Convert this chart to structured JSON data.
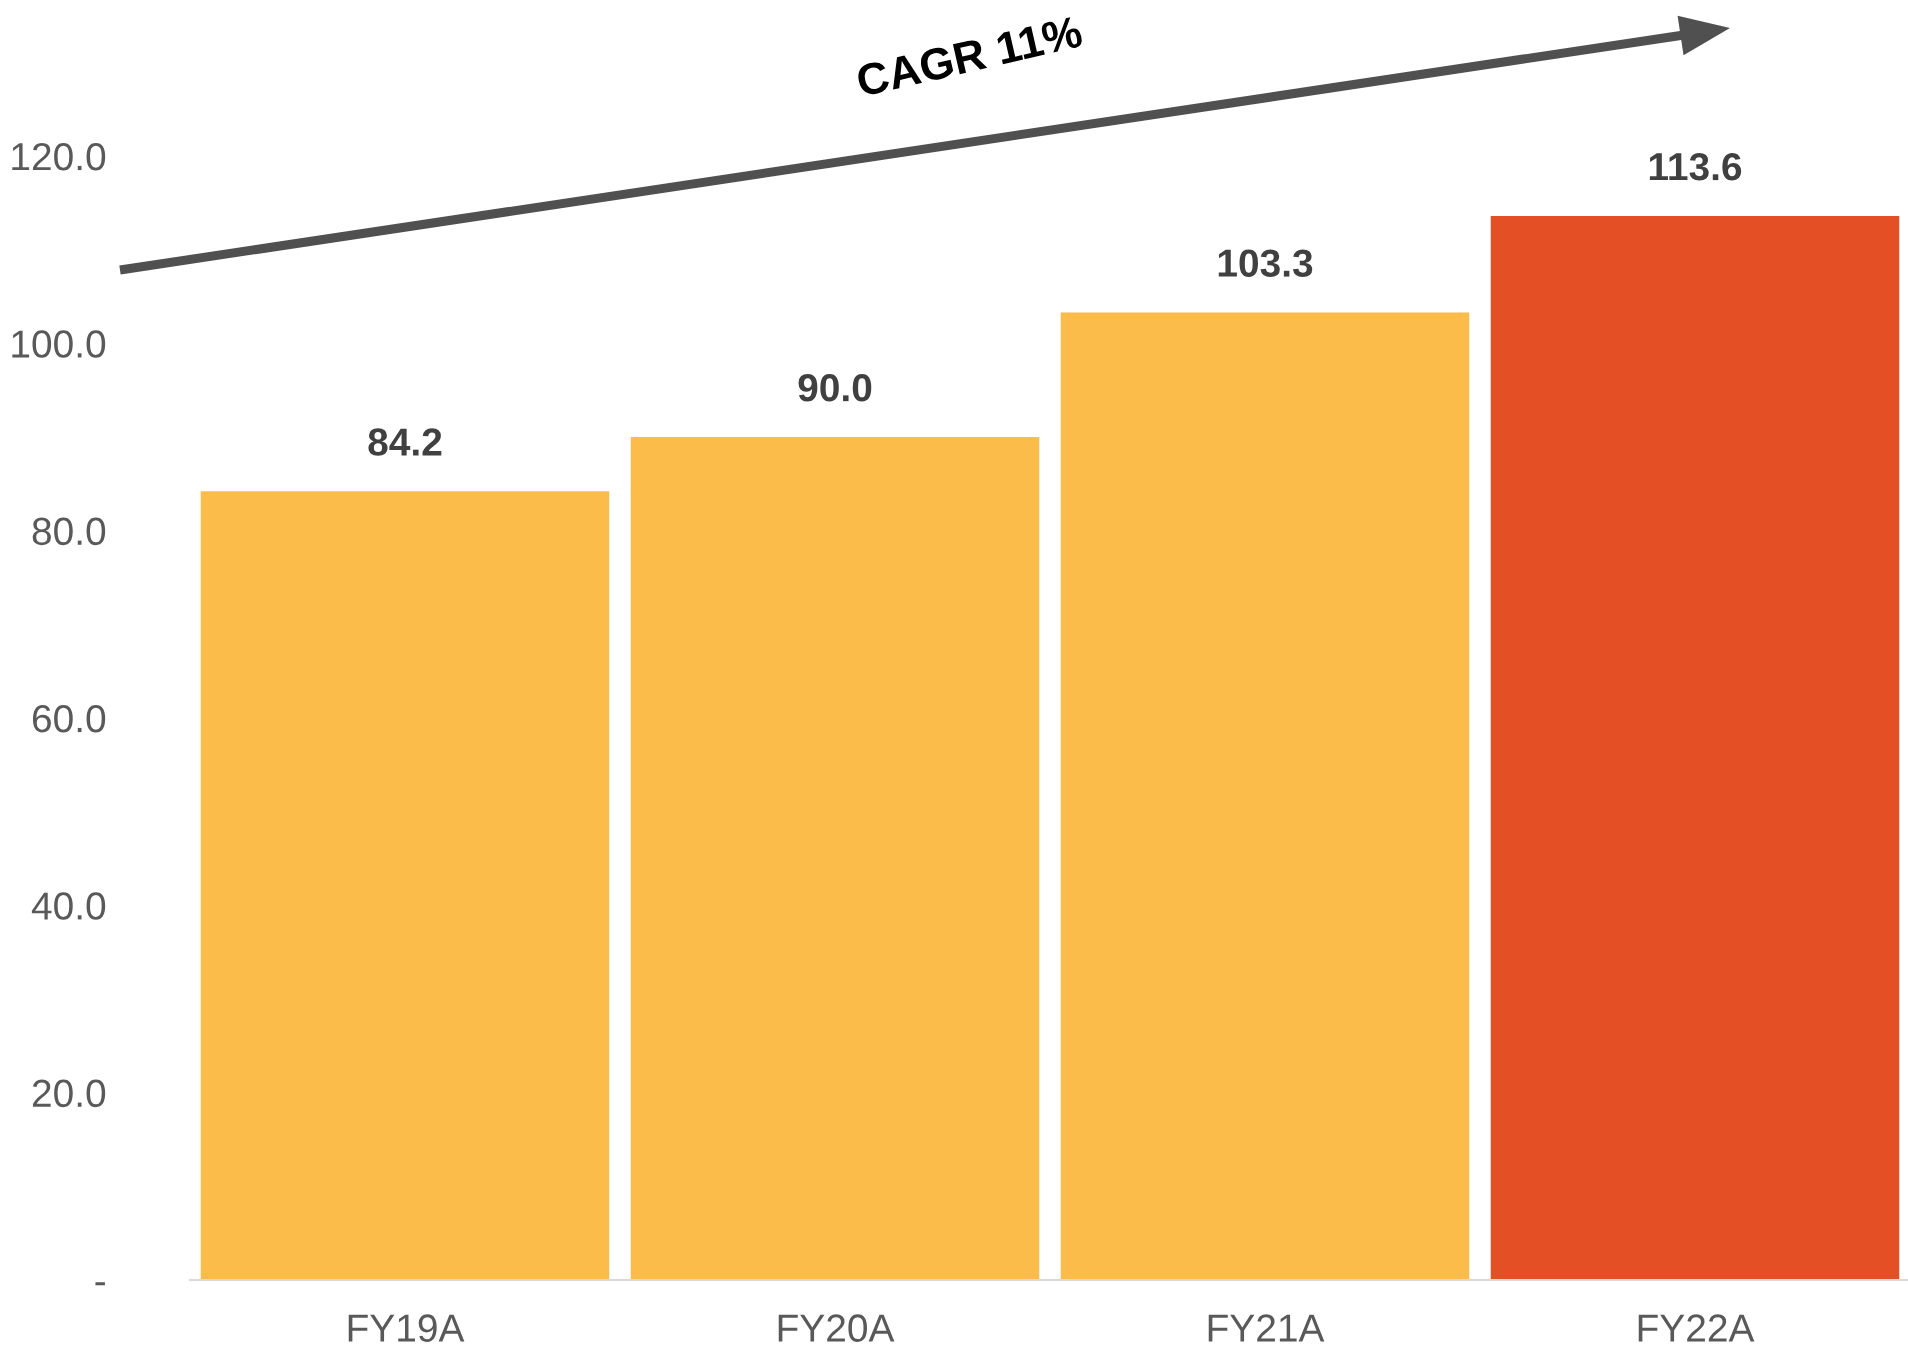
{
  "chart_data": {
    "type": "bar",
    "categories": [
      "FY19A",
      "FY20A",
      "FY21A",
      "FY22A"
    ],
    "values": [
      84.2,
      90.0,
      103.3,
      113.6
    ],
    "colors": [
      "#fbbc4a",
      "#fbbc4a",
      "#fbbc4a",
      "#e44f26"
    ],
    "value_labels": [
      "84.2",
      "90.0",
      "103.3",
      "113.6"
    ],
    "ylim": [
      0,
      120
    ],
    "yticks": [
      {
        "value": 0,
        "label": "-"
      },
      {
        "value": 20,
        "label": "20.0"
      },
      {
        "value": 40,
        "label": "40.0"
      },
      {
        "value": 60,
        "label": "60.0"
      },
      {
        "value": 80,
        "label": "80.0"
      },
      {
        "value": 100,
        "label": "100.0"
      },
      {
        "value": 120,
        "label": "120.0"
      }
    ],
    "annotations": [
      "CAGR 11%"
    ],
    "grid": false,
    "legend": false
  }
}
